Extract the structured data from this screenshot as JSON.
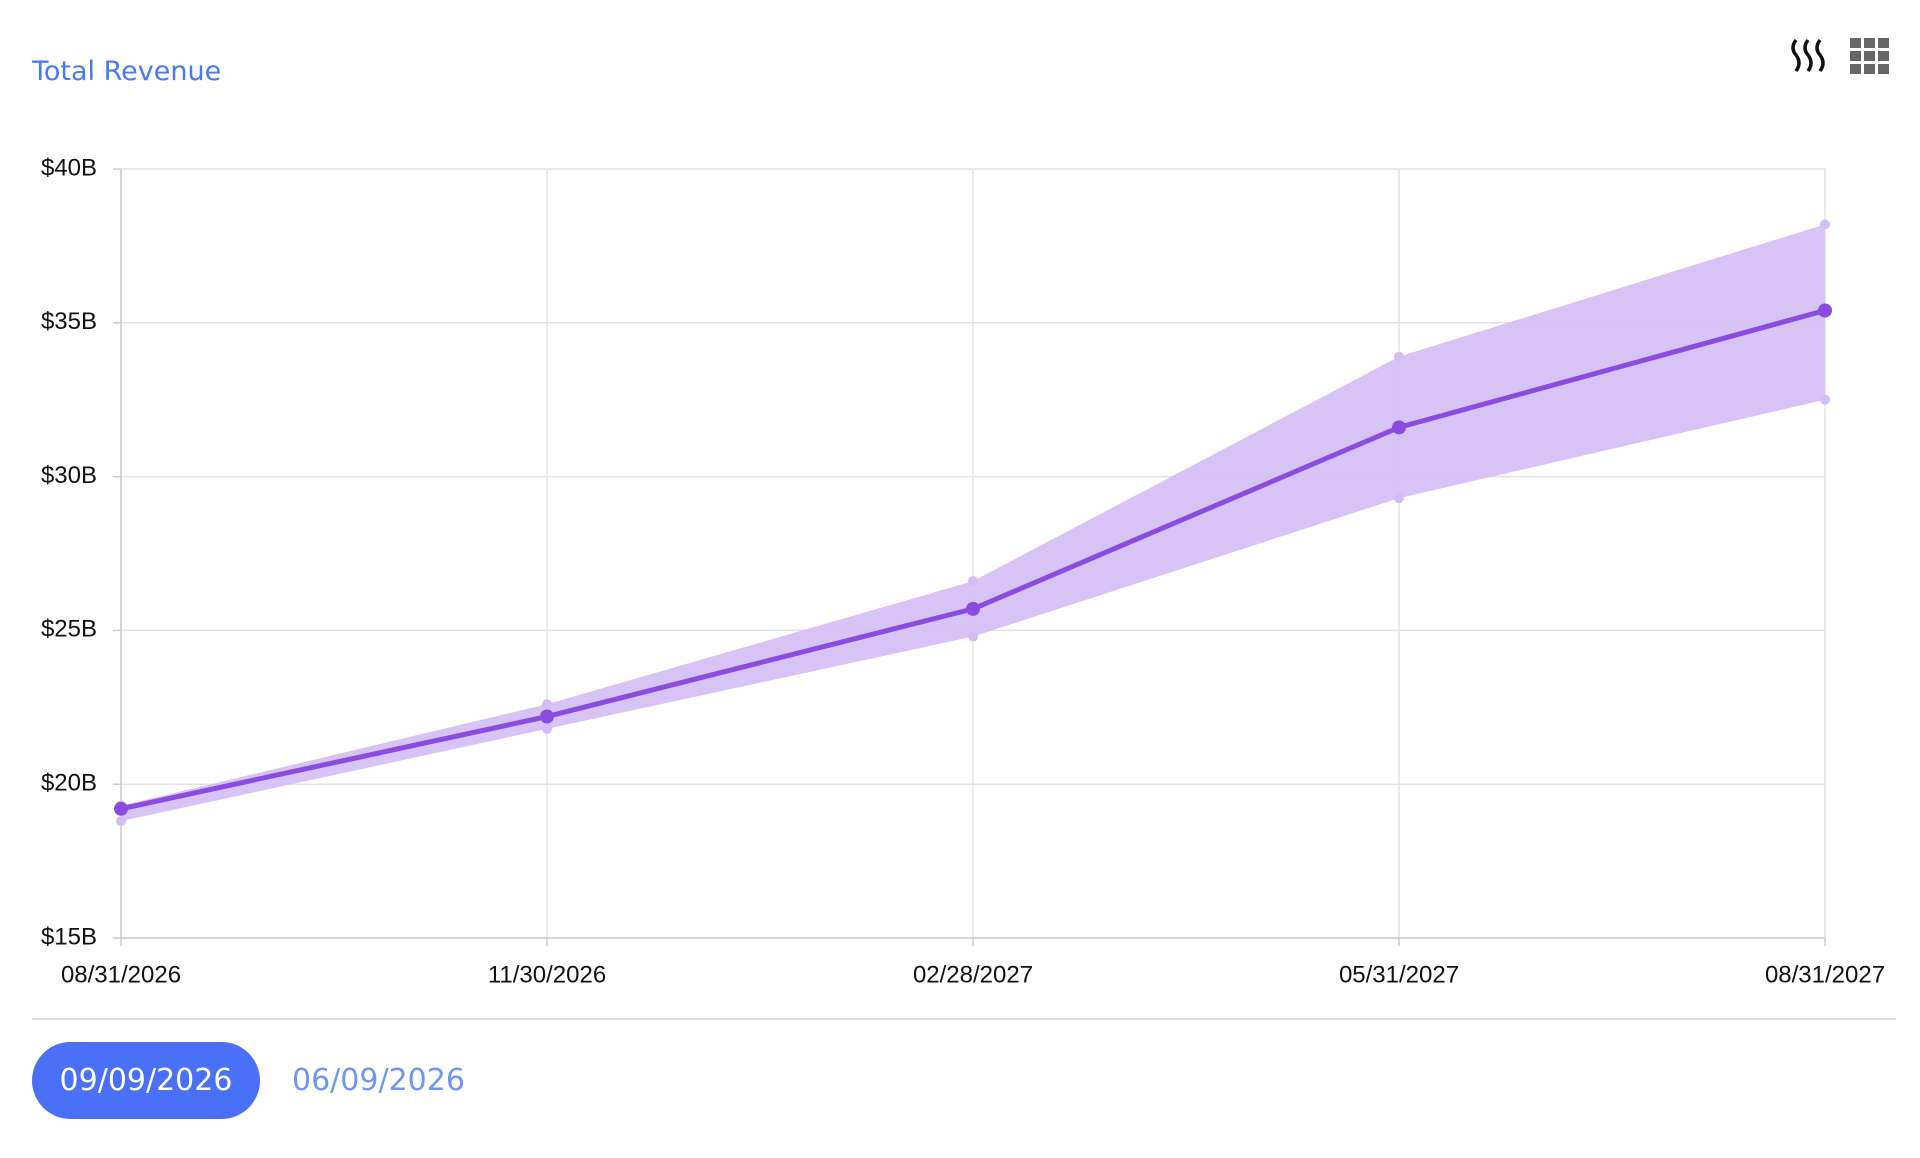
{
  "chart_data": {
    "type": "line",
    "title": "Total Revenue",
    "categories": [
      "08/31/2026",
      "11/30/2026",
      "02/28/2027",
      "05/31/2027",
      "08/31/2027"
    ],
    "series": [
      {
        "color": "#8a4be0",
        "values": [
          19.2,
          22.2,
          25.7,
          31.6,
          35.4
        ]
      }
    ],
    "band": {
      "color": "#d3bdf4",
      "upper": [
        19.3,
        22.6,
        26.6,
        33.9,
        38.2
      ],
      "lower": [
        18.8,
        21.8,
        24.8,
        29.3,
        32.5
      ]
    },
    "ylim": [
      15,
      40
    ],
    "yticks": [
      {
        "value": 15,
        "label": "$15B"
      },
      {
        "value": 20,
        "label": "$20B"
      },
      {
        "value": 25,
        "label": "$25B"
      },
      {
        "value": 30,
        "label": "$30B"
      },
      {
        "value": 35,
        "label": "$35B"
      },
      {
        "value": 40,
        "label": "$40B"
      }
    ],
    "grid": true
  },
  "date_tabs": [
    "09/09/2026",
    "06/09/2026"
  ]
}
